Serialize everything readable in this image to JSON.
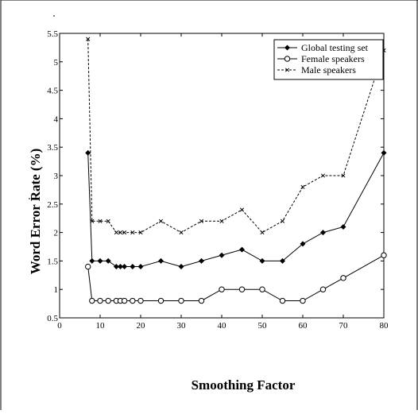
{
  "chart_data": {
    "type": "line",
    "title": "",
    "xlabel": "Smoothing Factor",
    "ylabel": "Word Error Rate (%)",
    "xlim": [
      0,
      80
    ],
    "ylim": [
      0.5,
      5.5
    ],
    "xticks": [
      0,
      10,
      20,
      30,
      40,
      50,
      60,
      70,
      80
    ],
    "yticks": [
      0.5,
      1,
      1.5,
      2,
      2.5,
      3,
      3.5,
      4,
      4.5,
      5,
      5.5
    ],
    "xtick_labels": [
      "0",
      "10",
      "20",
      "30",
      "40",
      "50",
      "60",
      "70",
      "80"
    ],
    "ytick_labels": [
      "0.5",
      "1",
      "1.5",
      "2",
      "2.5",
      "3",
      "3.5",
      "4",
      "4.5",
      "5",
      "5.5"
    ],
    "grid": false,
    "legend_position": "top-right",
    "x": [
      7,
      8,
      10,
      12,
      14,
      15,
      16,
      18,
      20,
      25,
      30,
      35,
      40,
      45,
      50,
      55,
      60,
      65,
      70,
      80
    ],
    "series": [
      {
        "name": "Global testing set",
        "style": "solid",
        "marker": "diamond",
        "color": "#000000",
        "values": [
          3.4,
          1.5,
          1.5,
          1.5,
          1.4,
          1.4,
          1.4,
          1.4,
          1.4,
          1.5,
          1.4,
          1.5,
          1.6,
          1.7,
          1.5,
          1.5,
          1.8,
          2.0,
          2.1,
          3.4
        ]
      },
      {
        "name": "Female speakers",
        "style": "solid",
        "marker": "circle",
        "color": "#000000",
        "values": [
          1.4,
          0.8,
          0.8,
          0.8,
          0.8,
          0.8,
          0.8,
          0.8,
          0.8,
          0.8,
          0.8,
          0.8,
          1.0,
          1.0,
          1.0,
          0.8,
          0.8,
          1.0,
          1.2,
          1.6
        ]
      },
      {
        "name": "Male speakers",
        "style": "dashed",
        "marker": "x",
        "color": "#000000",
        "values": [
          5.4,
          2.2,
          2.2,
          2.2,
          2.0,
          2.0,
          2.0,
          2.0,
          2.0,
          2.2,
          2.0,
          2.2,
          2.2,
          2.4,
          2.0,
          2.2,
          2.8,
          3.0,
          3.0,
          5.2
        ]
      }
    ]
  }
}
